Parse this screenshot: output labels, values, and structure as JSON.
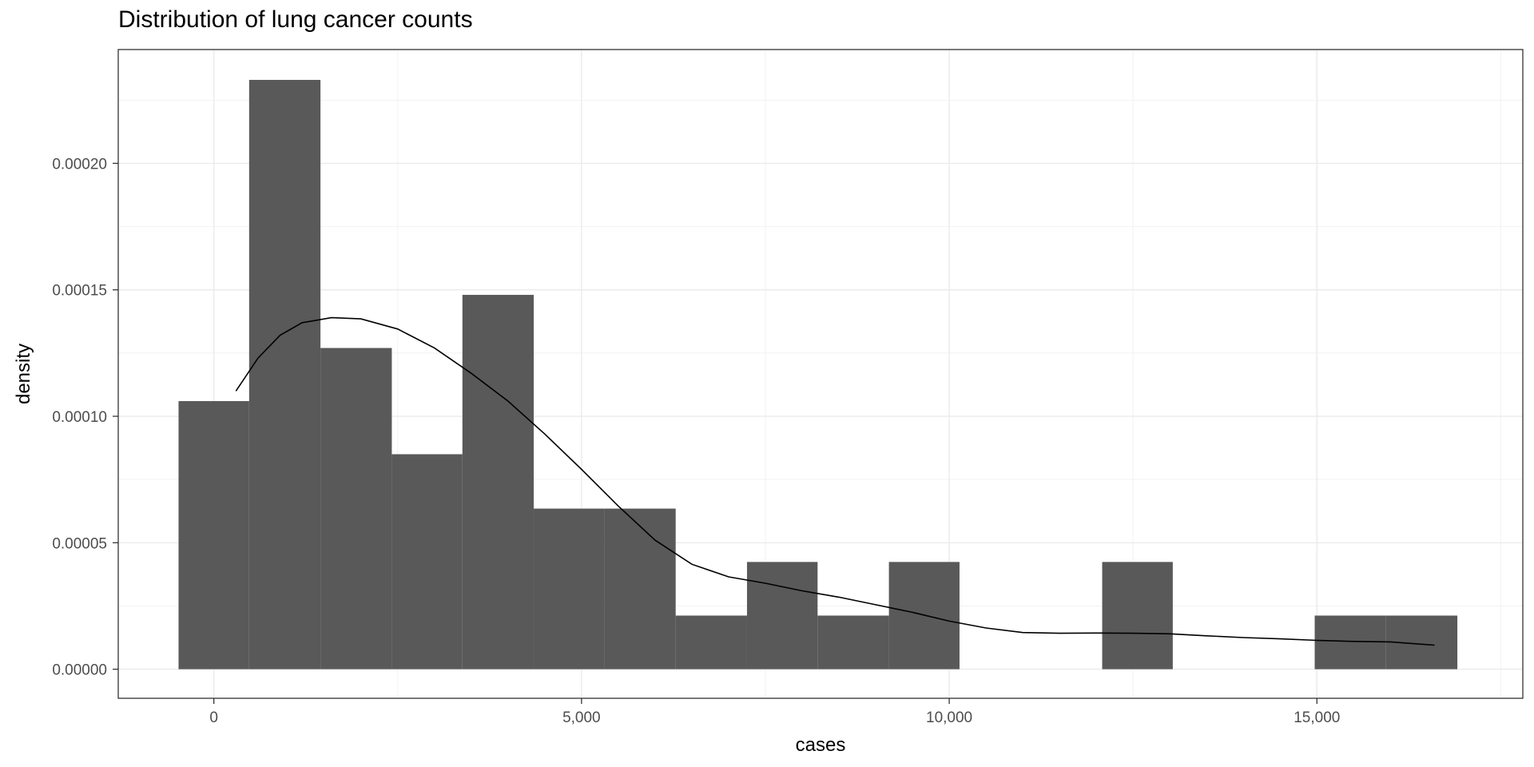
{
  "chart_data": {
    "type": "bar",
    "title": "Distribution of lung cancer counts",
    "xlabel": "cases",
    "ylabel": "density",
    "xlim": [
      -1300,
      17800
    ],
    "ylim": [
      -1.15e-05,
      0.000245
    ],
    "x_ticks": [
      0,
      5000,
      10000,
      15000
    ],
    "x_tick_labels": [
      "0",
      "5,000",
      "10,000",
      "15,000"
    ],
    "y_ticks": [
      0,
      5e-05,
      0.0001,
      0.00015,
      0.0002
    ],
    "y_tick_labels": [
      "0.00000",
      "0.00005",
      "0.00010",
      "0.00015",
      "0.00020"
    ],
    "grid": true,
    "bar_color": "#595959",
    "bins": [
      {
        "x0": -480,
        "x1": 480,
        "density": 0.000106
      },
      {
        "x0": 480,
        "x1": 1450,
        "density": 0.000233
      },
      {
        "x0": 1450,
        "x1": 2420,
        "density": 0.000127
      },
      {
        "x0": 2420,
        "x1": 3380,
        "density": 8.5e-05
      },
      {
        "x0": 3380,
        "x1": 4350,
        "density": 0.000148
      },
      {
        "x0": 4350,
        "x1": 5310,
        "density": 6.35e-05
      },
      {
        "x0": 5310,
        "x1": 6280,
        "density": 6.35e-05
      },
      {
        "x0": 6280,
        "x1": 7250,
        "density": 2.12e-05
      },
      {
        "x0": 7250,
        "x1": 8210,
        "density": 4.24e-05
      },
      {
        "x0": 8210,
        "x1": 9180,
        "density": 2.12e-05
      },
      {
        "x0": 9180,
        "x1": 10140,
        "density": 4.24e-05
      },
      {
        "x0": 10140,
        "x1": 11110,
        "density": 0
      },
      {
        "x0": 11110,
        "x1": 12080,
        "density": 0
      },
      {
        "x0": 12080,
        "x1": 13040,
        "density": 4.24e-05
      },
      {
        "x0": 13040,
        "x1": 14010,
        "density": 0
      },
      {
        "x0": 14010,
        "x1": 14970,
        "density": 0
      },
      {
        "x0": 14970,
        "x1": 15940,
        "density": 2.12e-05
      },
      {
        "x0": 15940,
        "x1": 16910,
        "density": 2.12e-05
      }
    ],
    "density_curve": {
      "x": [
        300,
        600,
        900,
        1200,
        1600,
        2000,
        2500,
        3000,
        3500,
        4000,
        4500,
        5000,
        5500,
        6000,
        6500,
        7000,
        7500,
        8000,
        8500,
        9000,
        9500,
        10000,
        10500,
        11000,
        11500,
        12000,
        12500,
        13000,
        13500,
        14000,
        14500,
        15000,
        15500,
        16000,
        16600
      ],
      "y": [
        0.00011,
        0.000123,
        0.000132,
        0.000137,
        0.000139,
        0.0001385,
        0.0001345,
        0.000127,
        0.000117,
        0.000106,
        9.3e-05,
        7.9e-05,
        6.45e-05,
        5.1e-05,
        4.15e-05,
        3.65e-05,
        3.4e-05,
        3.1e-05,
        2.85e-05,
        2.55e-05,
        2.25e-05,
        1.9e-05,
        1.63e-05,
        1.45e-05,
        1.42e-05,
        1.43e-05,
        1.42e-05,
        1.4e-05,
        1.32e-05,
        1.25e-05,
        1.2e-05,
        1.14e-05,
        1.1e-05,
        1.08e-05,
        9.5e-06
      ]
    }
  }
}
